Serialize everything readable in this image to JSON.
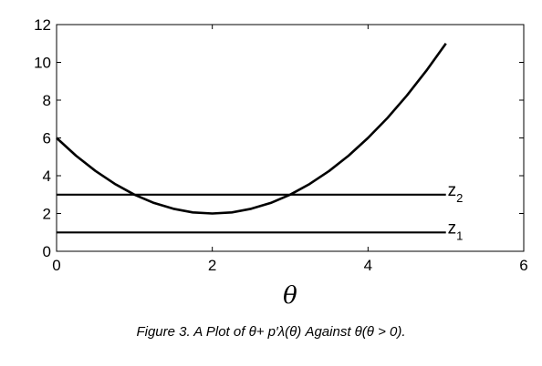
{
  "chart_data": {
    "type": "line",
    "xlabel": "θ",
    "ylabel": "",
    "xlim": [
      0,
      6
    ],
    "ylim": [
      0,
      12
    ],
    "xticks": [
      0,
      2,
      4,
      6
    ],
    "yticks": [
      0,
      2,
      4,
      6,
      8,
      10,
      12
    ],
    "grid": false,
    "series": [
      {
        "x": [
          0,
          0.25,
          0.5,
          0.75,
          1,
          1.25,
          1.5,
          1.75,
          2,
          2.25,
          2.5,
          2.75,
          3,
          3.25,
          3.5,
          3.75,
          4,
          4.25,
          4.5,
          4.75,
          5
        ],
        "values": [
          6,
          5.06,
          4.25,
          3.56,
          3,
          2.56,
          2.25,
          2.06,
          2,
          2.06,
          2.25,
          2.56,
          3,
          3.56,
          4.25,
          5.06,
          6,
          7.06,
          8.25,
          9.56,
          11
        ]
      },
      {
        "name": "z2",
        "x": [
          0,
          5
        ],
        "values": [
          3,
          3
        ]
      },
      {
        "name": "z1",
        "x": [
          0,
          5
        ],
        "values": [
          1,
          1
        ]
      }
    ],
    "annotations": [
      {
        "base": "z",
        "sub": "2"
      },
      {
        "base": "z",
        "sub": "1"
      }
    ]
  },
  "caption": "Figure 3.   A Plot of θ+ p′λ(θ) Against θ(θ > 0)."
}
